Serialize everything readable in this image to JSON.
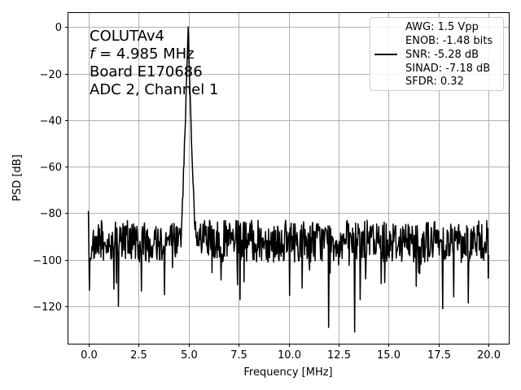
{
  "chart_data": {
    "type": "line",
    "xlabel": "Frequency [MHz]",
    "ylabel": "PSD [dB]",
    "xlim": [
      -1.0,
      21.0
    ],
    "ylim": [
      -136,
      6
    ],
    "xticks": [
      0.0,
      2.5,
      5.0,
      7.5,
      10.0,
      12.5,
      15.0,
      17.5,
      20.0
    ],
    "xtick_labels": [
      "0.0",
      "2.5",
      "5.0",
      "7.5",
      "10.0",
      "12.5",
      "15.0",
      "17.5",
      "20.0"
    ],
    "yticks": [
      0,
      -20,
      -40,
      -60,
      -80,
      -100,
      -120
    ],
    "ytick_labels": [
      "0",
      "−20",
      "−40",
      "−60",
      "−80",
      "−100",
      "−120"
    ],
    "grid": true,
    "legend_position": "top-right",
    "color": "#000000",
    "annotation": {
      "line1": "COLUTAv4",
      "line2_var": "f",
      "line2_rest": " = 4.985 MHz",
      "line3": "Board E170686",
      "line4": "ADC 2, Channel 1"
    },
    "legend": {
      "lines": [
        "AWG: 1.5 Vpp",
        "ENOB: -1.48 bits",
        "SNR: -5.28 dB",
        "SINAD: -7.18 dB",
        "SFDR: 0.32"
      ]
    },
    "series": [
      {
        "values": {
          "x_start": 0.0,
          "x_end": 20.0,
          "points": 800,
          "noise_floor_db": -92,
          "noise_spread_db": 9,
          "peak_freq_mhz": 4.985,
          "peak_db": 0,
          "peak_shoulder_db": -40,
          "peak_halfwidth_mhz": 0.35
        },
        "notable_points": [
          {
            "x": 0.0,
            "y": -79
          },
          {
            "x": 0.05,
            "y": -113
          },
          {
            "x": 1.5,
            "y": -120
          },
          {
            "x": 4.985,
            "y": 0
          },
          {
            "x": 12.0,
            "y": -129
          },
          {
            "x": 13.3,
            "y": -131
          },
          {
            "x": 17.7,
            "y": -121
          },
          {
            "x": 20.0,
            "y": -98
          }
        ]
      }
    ]
  }
}
